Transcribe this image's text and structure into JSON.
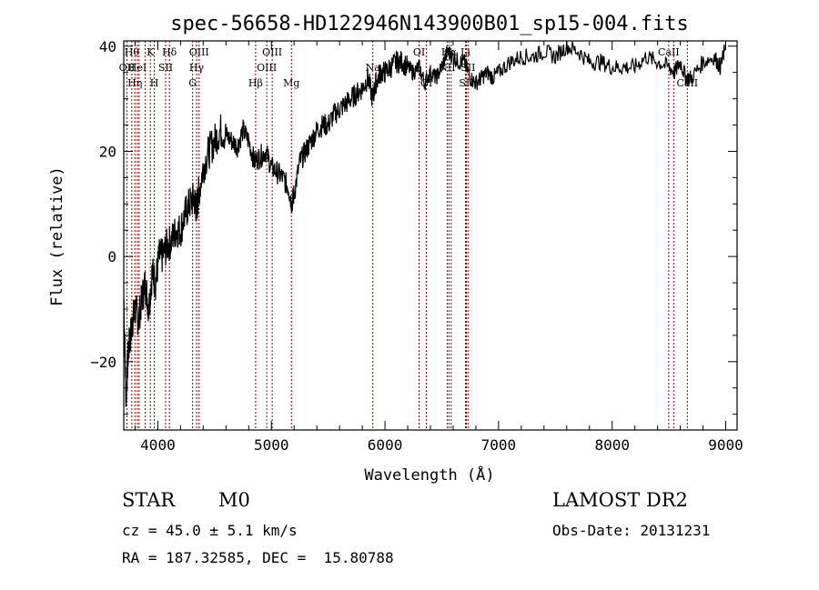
{
  "chart_data": {
    "type": "line",
    "title": "spec-56658-HD122946N143900B01_sp15-004.fits",
    "xlabel": "Wavelength (Å)",
    "ylabel": "Flux (relative)",
    "xlim": [
      3700,
      9100
    ],
    "ylim": [
      -33,
      41
    ],
    "x_ticks": [
      4000,
      5000,
      6000,
      7000,
      8000,
      9000
    ],
    "y_ticks": [
      -20,
      0,
      20,
      40
    ],
    "x_tick_labels": [
      "4000",
      "5000",
      "6000",
      "7000",
      "8000",
      "9000"
    ],
    "y_tick_labels": [
      "−20",
      "0",
      "20",
      "40"
    ],
    "grid": false,
    "line_color": "#000000",
    "marker_color": "#8b0000",
    "series": [
      {
        "x": [
          3700,
          3720,
          3740,
          3760,
          3780,
          3800,
          3830,
          3860,
          3890,
          3920,
          3950,
          3980,
          4010,
          4040,
          4080,
          4120,
          4160,
          4200,
          4240,
          4280,
          4320,
          4340,
          4360,
          4400,
          4450,
          4500,
          4550,
          4600,
          4650,
          4700,
          4750,
          4800,
          4850,
          4900,
          4950,
          5000,
          5050,
          5100,
          5150,
          5180,
          5200,
          5250,
          5300,
          5350,
          5400,
          5450,
          5500,
          5550,
          5600,
          5650,
          5700,
          5750,
          5800,
          5850,
          5890,
          5920,
          5960,
          6000,
          6050,
          6100,
          6150,
          6200,
          6250,
          6300,
          6350,
          6400,
          6450,
          6500,
          6550,
          6600,
          6650,
          6700,
          6750,
          6800,
          6850,
          6900,
          6950,
          7000,
          7100,
          7200,
          7300,
          7400,
          7500,
          7600,
          7700,
          7800,
          7900,
          8000,
          8100,
          8200,
          8300,
          8400,
          8500,
          8550,
          8600,
          8650,
          8700,
          8800,
          8900,
          8950,
          8990
        ],
        "y": [
          -8,
          -27,
          -18,
          -15,
          -12,
          -10,
          -12,
          -8,
          -5,
          -10,
          -3,
          -5,
          0,
          0,
          2,
          3,
          5,
          5,
          8,
          10,
          11,
          9,
          12,
          17,
          20,
          22,
          24,
          23,
          22,
          21,
          24,
          22,
          18,
          19,
          20,
          17,
          16,
          15,
          13,
          10,
          12,
          18,
          20,
          22,
          24,
          25,
          25,
          27,
          28,
          29,
          30,
          31,
          32,
          34,
          30,
          33,
          35,
          35,
          36,
          37,
          37,
          36,
          35,
          36,
          33,
          35,
          34,
          36,
          39,
          38,
          37,
          37,
          34,
          33,
          34,
          35,
          34,
          35,
          37,
          38,
          38,
          39,
          38,
          40,
          39,
          37,
          37,
          36,
          36,
          36,
          38,
          37,
          36,
          35,
          37,
          34,
          34,
          37,
          38,
          36,
          39
        ]
      }
    ],
    "lines": [
      {
        "x": 3728,
        "label": "OII",
        "row": 2
      },
      {
        "x": 3771,
        "label": "Hθ",
        "row": 1
      },
      {
        "x": 3798,
        "label": "Hη",
        "row": 3
      },
      {
        "x": 3820,
        "label": "HeI",
        "row": 2
      },
      {
        "x": 3835,
        "label": "",
        "row": 0
      },
      {
        "x": 3889,
        "label": "",
        "row": 0
      },
      {
        "x": 3934,
        "label": "K",
        "row": 1
      },
      {
        "x": 3969,
        "label": "H",
        "row": 3
      },
      {
        "x": 4068,
        "label": "SII",
        "row": 2
      },
      {
        "x": 4102,
        "label": "Hδ",
        "row": 1
      },
      {
        "x": 4306,
        "label": "G",
        "row": 3
      },
      {
        "x": 4341,
        "label": "Hγ",
        "row": 2
      },
      {
        "x": 4363,
        "label": "OIII",
        "row": 1
      },
      {
        "x": 4861,
        "label": "Hβ",
        "row": 3
      },
      {
        "x": 4959,
        "label": "OIII",
        "row": 2
      },
      {
        "x": 5007,
        "label": "OIII",
        "row": 1
      },
      {
        "x": 5176,
        "label": "Mg",
        "row": 3
      },
      {
        "x": 5893,
        "label": "Na",
        "row": 2
      },
      {
        "x": 6300,
        "label": "OI",
        "row": 1
      },
      {
        "x": 6364,
        "label": "OI",
        "row": 3
      },
      {
        "x": 6548,
        "label": "NII",
        "row": 2
      },
      {
        "x": 6563,
        "label": "Hα",
        "row": 1
      },
      {
        "x": 6583,
        "label": "",
        "row": 0
      },
      {
        "x": 6716,
        "label": "SII",
        "row": 3
      },
      {
        "x": 6731,
        "label": "SII",
        "row": 2
      },
      {
        "x": 6708,
        "label": "Li",
        "row": 1
      },
      {
        "x": 8498,
        "label": "CaII",
        "row": 1
      },
      {
        "x": 8542,
        "label": "",
        "row": 0
      },
      {
        "x": 8662,
        "label": "CaII",
        "row": 3
      }
    ]
  },
  "info": {
    "object_type": "STAR",
    "subclass": "M0",
    "survey": "LAMOST DR2",
    "cz": "cz = 45.0 ± 5.1 km/s",
    "obs_date": "Obs-Date: 20131231",
    "coords": "RA = 187.32585, DEC =  15.80788"
  }
}
